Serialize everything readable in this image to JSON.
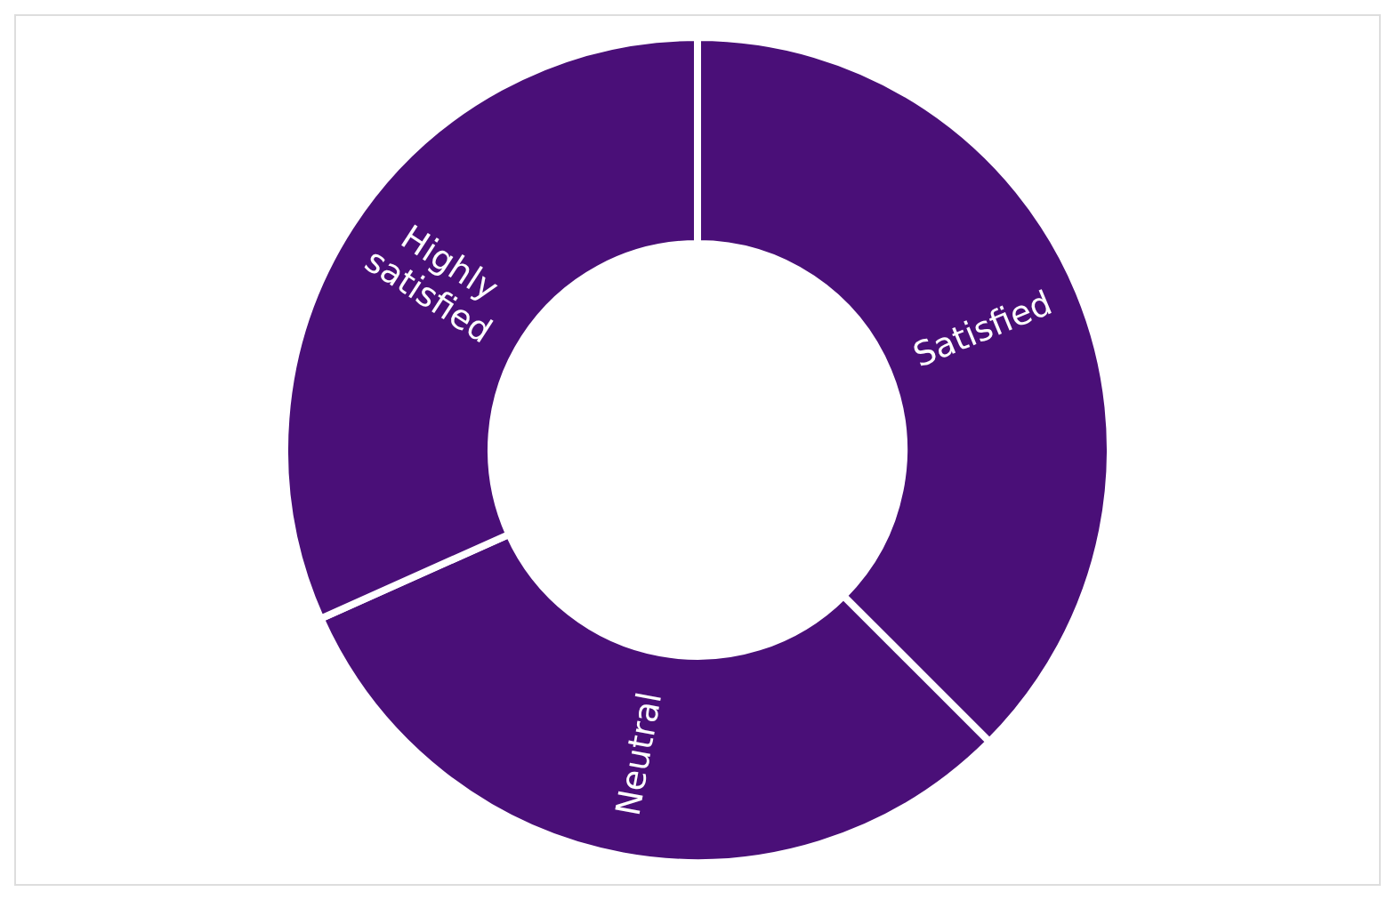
{
  "chart_data": {
    "type": "donut",
    "categories": [
      "Satisfied",
      "Neutral",
      "Highly satisfied"
    ],
    "values": [
      37.5,
      30.8,
      31.7
    ],
    "colors": [
      "#4a0f78",
      "#4a0f78",
      "#4a0f78"
    ],
    "legend": false
  }
}
